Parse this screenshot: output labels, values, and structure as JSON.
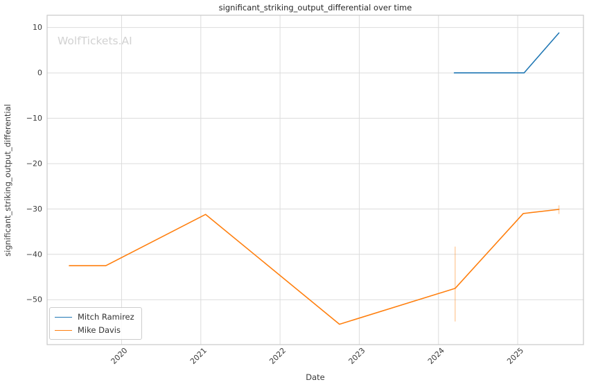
{
  "figure": {
    "watermark": "WolfTickets.AI"
  },
  "chart_data": {
    "type": "line",
    "title": "significant_striking_output_differential over time",
    "xlabel": "Date",
    "ylabel": "significant_striking_output_differential",
    "xlim": [
      2019.06,
      2025.83
    ],
    "ylim": [
      -59.9,
      12.7
    ],
    "x_ticks": [
      2020,
      2021,
      2022,
      2023,
      2024,
      2025
    ],
    "y_ticks": [
      10,
      0,
      -10,
      -20,
      -30,
      -40,
      -50
    ],
    "grid": true,
    "grid_color": "#dcdcdc",
    "spine_color": "#c8c8c8",
    "tick_label_color": "#3a3a3a",
    "legend_position": "lower left",
    "series": [
      {
        "name": "Mitch Ramirez",
        "color": "#1f77b4",
        "x": [
          2024.2,
          2025.08,
          2025.52
        ],
        "y": [
          0,
          0,
          8.8
        ],
        "error_bars": []
      },
      {
        "name": "Mike Davis",
        "color": "#ff7f0e",
        "x": [
          2019.34,
          2019.8,
          2021.06,
          2022.75,
          2024.21,
          2025.07,
          2025.52
        ],
        "y": [
          -42.5,
          -42.5,
          -31.2,
          -55.4,
          -47.5,
          -31.0,
          -30.1
        ],
        "error_bars": [
          {
            "x": 2024.21,
            "low": -54.8,
            "high": -38.3
          },
          {
            "x": 2025.52,
            "low": -31.1,
            "high": -29.2
          }
        ]
      }
    ]
  }
}
